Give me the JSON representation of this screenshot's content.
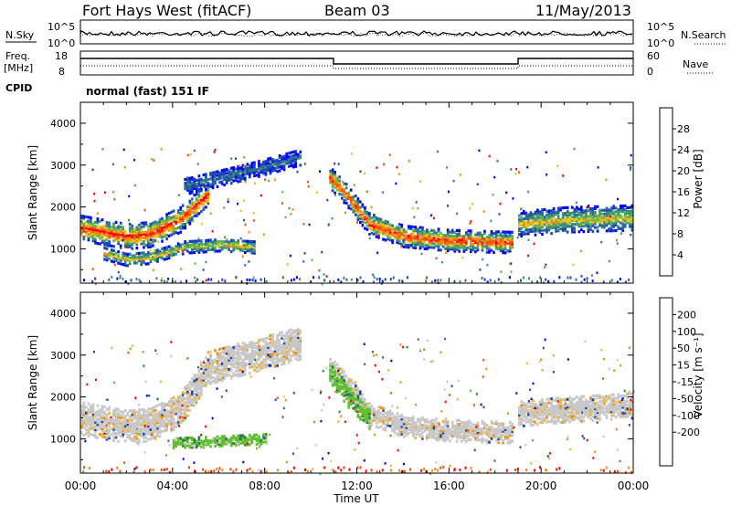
{
  "header": {
    "station": "Fort Hays West (fitACF)",
    "beam": "Beam 03",
    "date": "11/May/2013"
  },
  "strip": {
    "nsky_label": "N.Sky",
    "nsky_ticks": [
      "10^5",
      "10^0"
    ],
    "nsearch_label": "N.Search",
    "nsearch_ticks": [
      "10^5",
      "10^0"
    ],
    "freq_label": "Freq.",
    "freq_unit": "[MHz]",
    "freq_ticks": [
      "18",
      "8"
    ],
    "nave_label": "Nave",
    "nave_ticks": [
      "60",
      "0"
    ],
    "cpid_label": "CPID",
    "cpid_text": "normal (fast) 151 IF"
  },
  "colors": {
    "power_scale": [
      "#0000ff",
      "#1846b8",
      "#2f6e8f",
      "#3f8f7a",
      "#5fb84a",
      "#f0c020",
      "#f08c10",
      "#f05010",
      "#ff0000"
    ],
    "velocity_scale": [
      "#ff0000",
      "#f0500a",
      "#f08c10",
      "#f0b030",
      "#c8c8c8",
      "#c8c8c8",
      "#60c030",
      "#2f7a4a",
      "#1f4aa8",
      "#0000d8"
    ]
  },
  "chart_data": [
    {
      "type": "heatmap",
      "panel": "power",
      "ylabel": "Slant Range [km]",
      "ylim": [
        180,
        4500
      ],
      "yticks": [
        "1000",
        "2000",
        "3000",
        "4000"
      ],
      "xlabel": "Time UT",
      "xticks": [
        "00:00",
        "04:00",
        "08:00",
        "12:00",
        "16:00",
        "20:00",
        "00:00"
      ],
      "colorbar": {
        "label": "Power [dB]",
        "ticks": [
          "4",
          "8",
          "12",
          "16",
          "20",
          "24",
          "28"
        ]
      },
      "bands": [
        {
          "x": [
            0.0,
            2.0,
            3.0,
            4.3,
            5.5
          ],
          "y": [
            1500,
            1300,
            1350,
            1700,
            2300
          ],
          "width": 300,
          "level": "high"
        },
        {
          "x": [
            1.0,
            2.0,
            3.0,
            4.5,
            6.0,
            7.5
          ],
          "y": [
            900,
            750,
            800,
            1050,
            1100,
            1050
          ],
          "width": 150,
          "level": "medium"
        },
        {
          "x": [
            4.5,
            6.0,
            7.5,
            9.5
          ],
          "y": [
            2500,
            2700,
            2900,
            3200
          ],
          "width": 200,
          "level": "low"
        },
        {
          "x": [
            10.8,
            11.5,
            12.5,
            14.0,
            16.0,
            18.8
          ],
          "y": [
            2700,
            2300,
            1600,
            1300,
            1200,
            1150
          ],
          "width": 250,
          "level": "high"
        },
        {
          "x": [
            19.0,
            21.0,
            24.0
          ],
          "y": [
            1600,
            1700,
            1750
          ],
          "width": 300,
          "level": "medium"
        }
      ]
    },
    {
      "type": "heatmap",
      "panel": "velocity",
      "ylabel": "Slant Range [km]",
      "ylim": [
        180,
        4500
      ],
      "yticks": [
        "1000",
        "2000",
        "3000",
        "4000"
      ],
      "xlabel": "Time UT",
      "xticks": [
        "00:00",
        "04:00",
        "08:00",
        "12:00",
        "16:00",
        "20:00",
        "00:00"
      ],
      "colorbar": {
        "label": "Velocity [m s⁻¹]",
        "ticks": [
          "200",
          "100",
          "50",
          "15",
          "-15",
          "-50",
          "-100",
          "-200"
        ]
      },
      "bands": [
        {
          "x": [
            0.0,
            2.0,
            3.0,
            4.3,
            5.5,
            9.5
          ],
          "y": [
            1500,
            1300,
            1350,
            1700,
            2700,
            3300
          ],
          "width": 400,
          "level": "neutral"
        },
        {
          "x": [
            10.8,
            11.5,
            12.5,
            14.0,
            16.0,
            18.8
          ],
          "y": [
            2700,
            2300,
            1600,
            1300,
            1200,
            1150
          ],
          "width": 250,
          "level": "neutral"
        },
        {
          "x": [
            19.0,
            21.0,
            24.0
          ],
          "y": [
            1600,
            1700,
            1800
          ],
          "width": 300,
          "level": "neutral"
        },
        {
          "x": [
            10.8,
            11.6,
            12.5
          ],
          "y": [
            2600,
            2000,
            1500
          ],
          "width": 250,
          "level": "positive"
        },
        {
          "x": [
            4.0,
            6.0,
            8.0
          ],
          "y": [
            900,
            950,
            1000
          ],
          "width": 120,
          "level": "positive"
        }
      ]
    }
  ]
}
